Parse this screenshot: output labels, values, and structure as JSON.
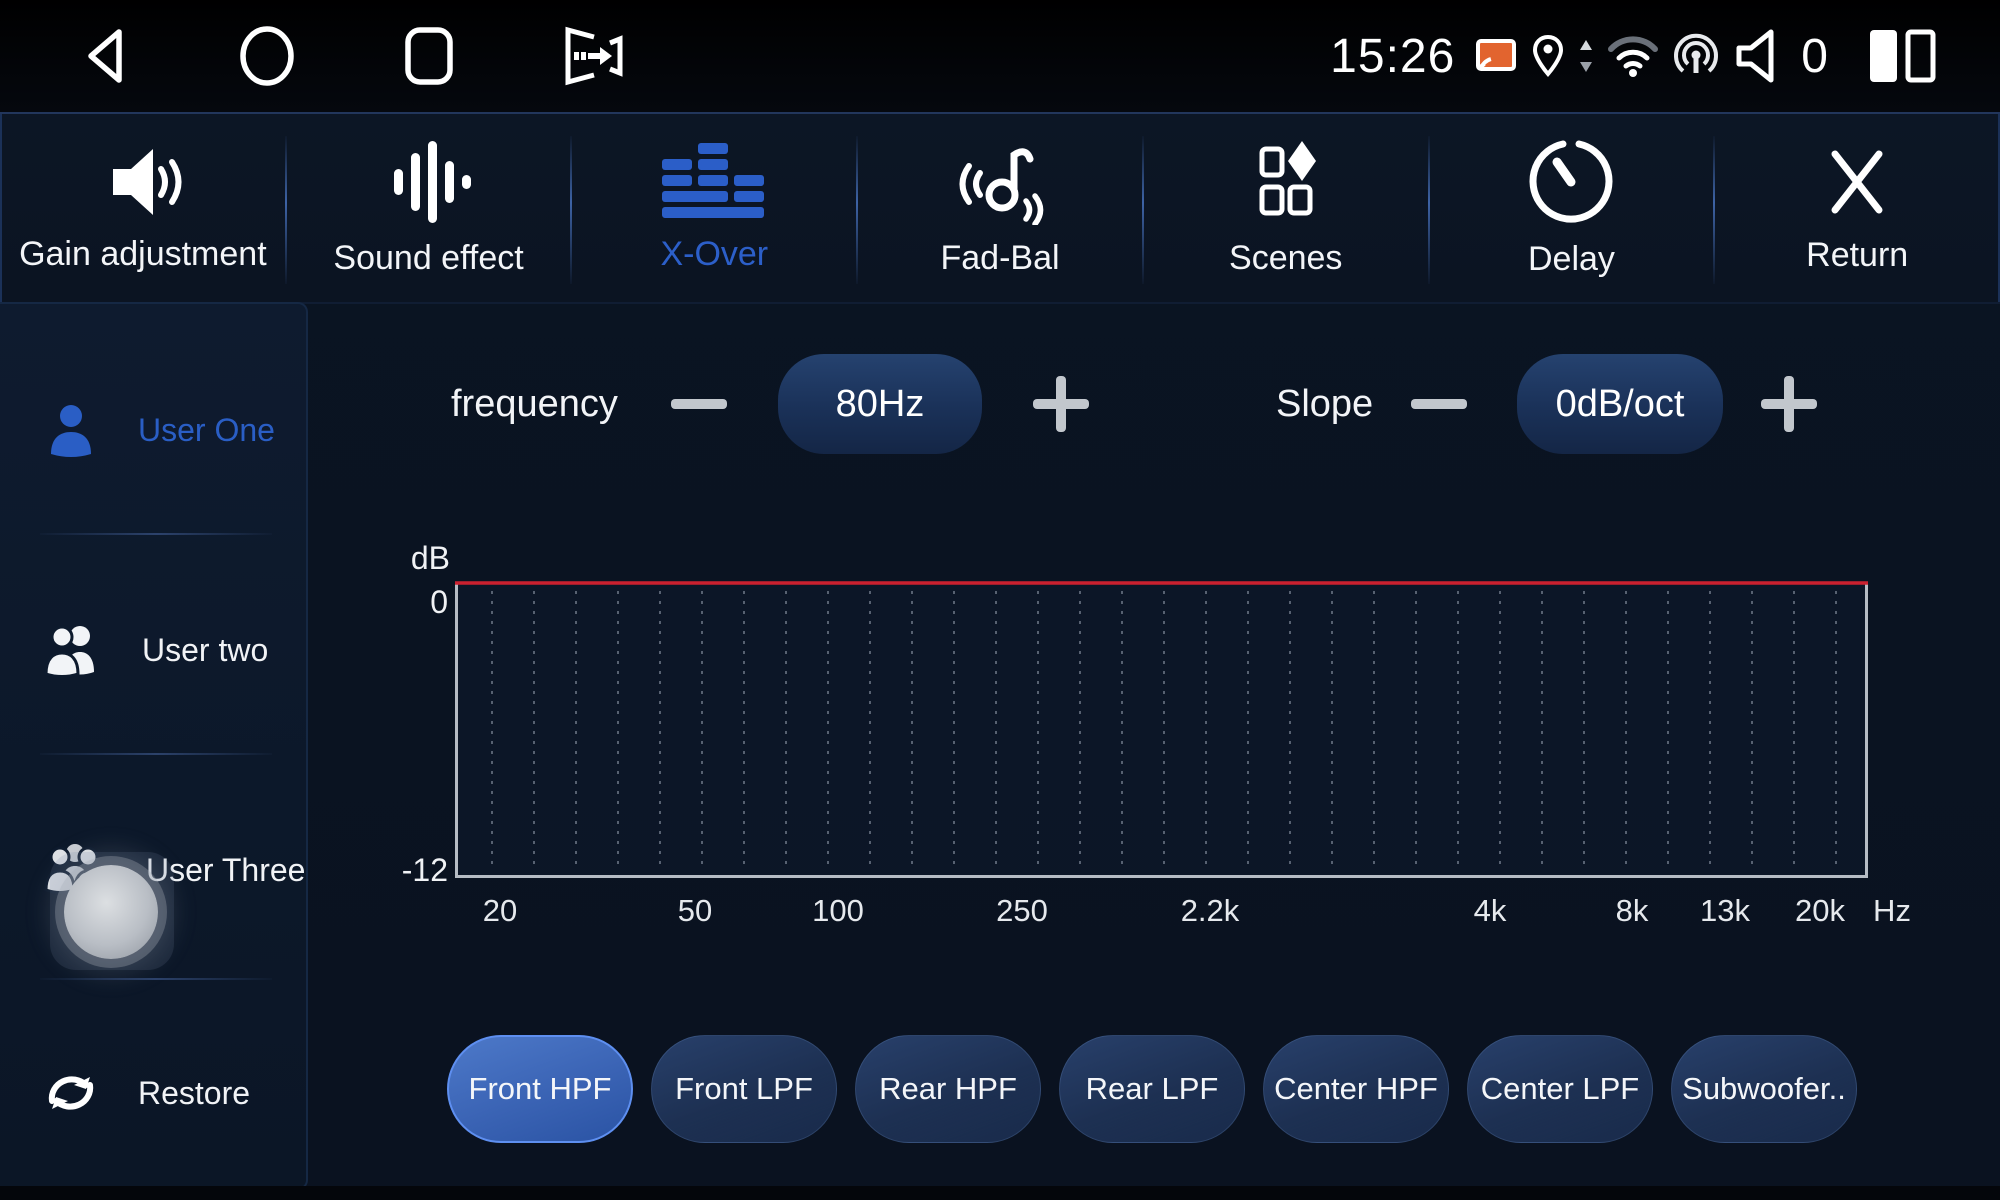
{
  "status_bar": {
    "time": "15:26",
    "volume_level": "0",
    "icons": [
      "cast",
      "location",
      "data-transfer",
      "wifi",
      "hotspot",
      "volume",
      "dual-zone"
    ]
  },
  "nav_icons": [
    "back",
    "home",
    "recents",
    "exit-app"
  ],
  "tabs": [
    {
      "label": "Gain adjustment",
      "icon": "speaker-icon",
      "selected": false
    },
    {
      "label": "Sound effect",
      "icon": "waveform-bars-icon",
      "selected": false
    },
    {
      "label": "X-Over",
      "icon": "equalizer-icon",
      "selected": true
    },
    {
      "label": "Fad-Bal",
      "icon": "note-wave-icon",
      "selected": false
    },
    {
      "label": "Scenes",
      "icon": "scenes-grid-icon",
      "selected": false
    },
    {
      "label": "Delay",
      "icon": "timer-icon",
      "selected": false
    },
    {
      "label": "Return",
      "icon": "close-x-icon",
      "selected": false
    }
  ],
  "sidebar": {
    "items": [
      {
        "label": "User One",
        "icon": "user-one-icon",
        "selected": true
      },
      {
        "label": "User two",
        "icon": "user-two-icon",
        "selected": false
      },
      {
        "label": "User Three",
        "icon": "user-three-icon",
        "selected": false
      },
      {
        "label": "Restore",
        "icon": "restore-icon",
        "selected": false
      }
    ]
  },
  "controls": {
    "frequency": {
      "label": "frequency",
      "value": "80Hz"
    },
    "slope": {
      "label": "Slope",
      "value": "0dB/oct"
    }
  },
  "chart_data": {
    "type": "line",
    "ylabel": "dB",
    "x_unit": "Hz",
    "x_ticks": [
      "20",
      "50",
      "100",
      "250",
      "2.2k",
      "4k",
      "8k",
      "13k",
      "20k"
    ],
    "y_ticks": [
      "0",
      "-12"
    ],
    "ylim": [
      -12,
      0
    ],
    "xlim_hz": [
      20,
      20000
    ],
    "grid": "dotted-vertical",
    "series": [
      {
        "name": "crossover-response",
        "color": "#cb202f",
        "x": [
          20,
          20000
        ],
        "y": [
          0,
          0
        ]
      }
    ]
  },
  "filters": [
    {
      "label": "Front HPF",
      "selected": true
    },
    {
      "label": "Front LPF",
      "selected": false
    },
    {
      "label": "Rear HPF",
      "selected": false
    },
    {
      "label": "Rear LPF",
      "selected": false
    },
    {
      "label": "Center HPF",
      "selected": false
    },
    {
      "label": "Center LPF",
      "selected": false
    },
    {
      "label": "Subwoofer..",
      "selected": false
    }
  ],
  "colors": {
    "accent_blue": "#2c5fc9",
    "curve_red": "#cb202f",
    "cast_orange": "#e2642f",
    "selected_pill_border": "#5e8ff0"
  }
}
